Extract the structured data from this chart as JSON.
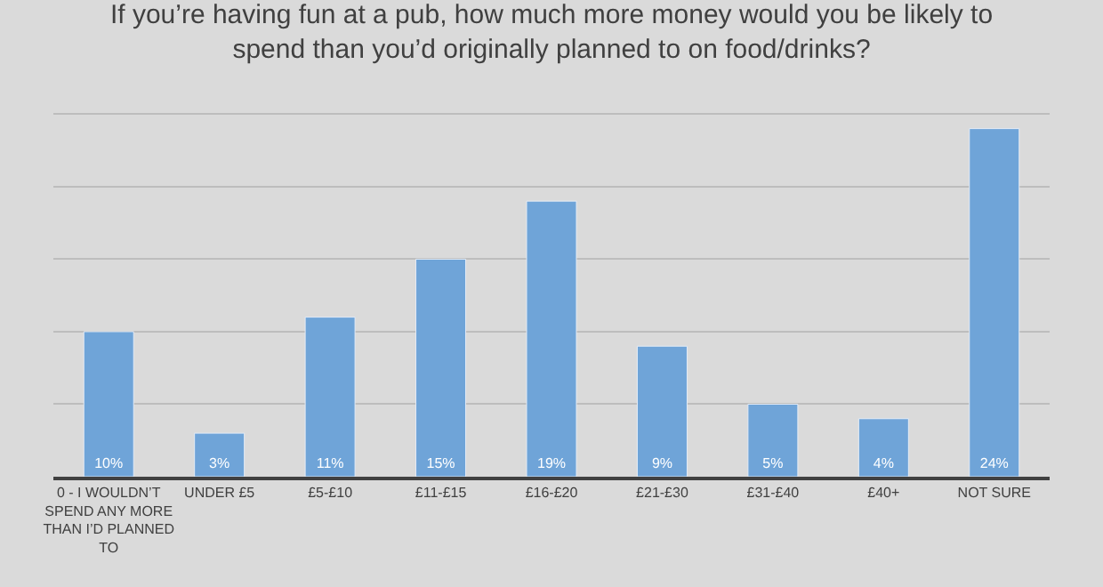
{
  "chart_data": {
    "type": "bar",
    "title": "If you’re having fun at a pub, how much more money would you be likely to spend than you’d originally planned to on food/drinks?",
    "categories": [
      "0 - I WOULDN’T SPEND ANY MORE THAN I’D PLANNED TO",
      "UNDER £5",
      "£5-£10",
      "£11-£15",
      "£16-£20",
      "£21-£30",
      "£31-£40",
      "£40+",
      "NOT SURE"
    ],
    "values": [
      10,
      3,
      11,
      15,
      19,
      9,
      5,
      4,
      24
    ],
    "value_labels": [
      "10%",
      "3%",
      "11%",
      "15%",
      "19%",
      "9%",
      "5%",
      "4%",
      "24%"
    ],
    "color": "#6fa4d8",
    "yticks": [
      {
        "value": 0,
        "label": null
      },
      {
        "value": 5,
        "label": null
      },
      {
        "value": 10,
        "label": null
      },
      {
        "value": 15,
        "label": null
      },
      {
        "value": 20,
        "label": null
      },
      {
        "value": 25,
        "label": null
      }
    ],
    "tick_labels": "x",
    "grid": "y"
  }
}
